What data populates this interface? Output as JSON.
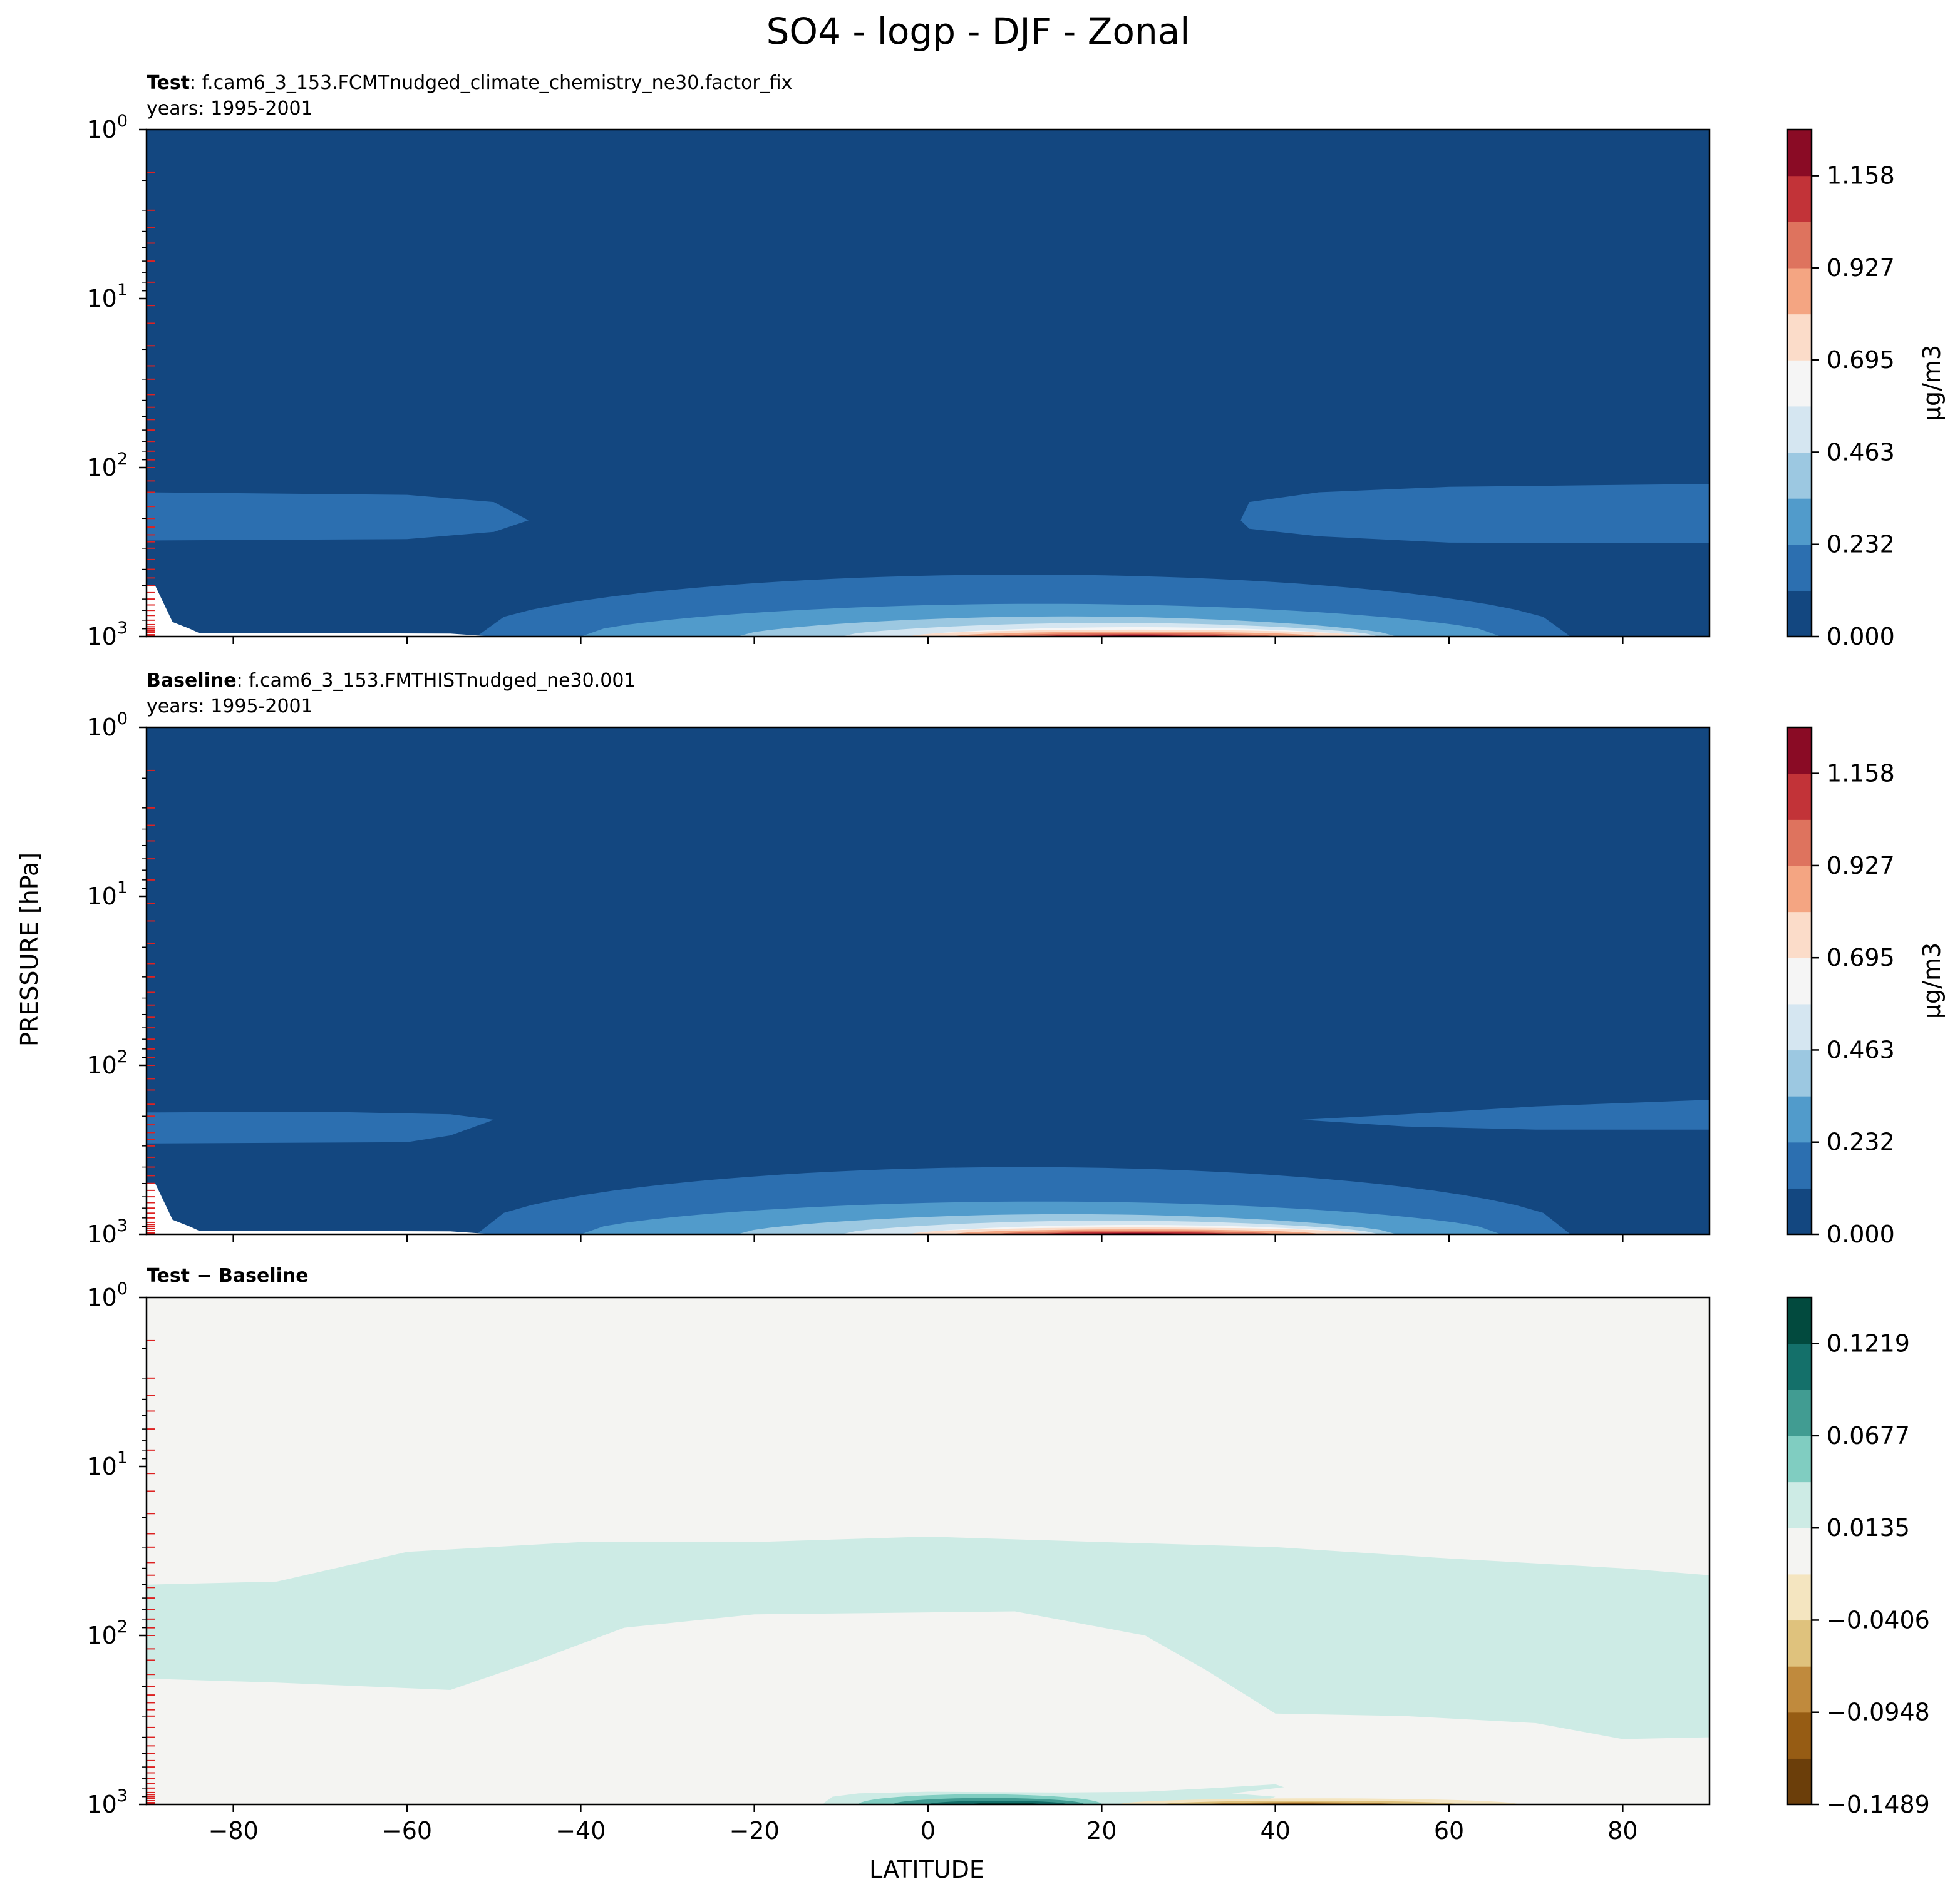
{
  "figure_title": "SO4 - logp - DJF - Zonal",
  "y_axis_label": "PRESSURE [hPa]",
  "x_axis_label": "LATITUDE",
  "x_ticks": [
    -80,
    -60,
    -40,
    -20,
    0,
    20,
    40,
    60,
    80
  ],
  "x_range": [
    -90,
    90
  ],
  "y_ticks": [
    {
      "value": 1,
      "base": "10",
      "exp": "0"
    },
    {
      "value": 10,
      "base": "10",
      "exp": "1"
    },
    {
      "value": 100,
      "base": "10",
      "exp": "2"
    },
    {
      "value": 1000,
      "base": "10",
      "exp": "3"
    }
  ],
  "y_range": [
    1,
    1000
  ],
  "colors": {
    "so4_levels": [
      "#134780",
      "#2c6fb0",
      "#519bcb",
      "#9cc8e1",
      "#d5e6f1",
      "#f5f5f5",
      "#fbdcc9",
      "#f4a582",
      "#de735e",
      "#c23338",
      "#8a0b25"
    ],
    "diff_levels": [
      "#6b3e0a",
      "#965c14",
      "#c08a3d",
      "#dfc27d",
      "#f4e5c0",
      "#f4f4f2",
      "#cdebe5",
      "#80cdc1",
      "#419c92",
      "#14706a",
      "#024a3e"
    ],
    "model_level_tick": "#dd2222",
    "missing": "#ffffff"
  },
  "panels": [
    {
      "id": "test",
      "label_bold": "Test",
      "label_text": ": f.cam6_3_153.FCMTnudged_climate_chemistry_ne30.factor_fix",
      "years": "years: 1995-2001",
      "colorbar": {
        "ticks": [
          "1.158",
          "0.927",
          "0.695",
          "0.463",
          "0.232",
          "0.000"
        ],
        "unit": "μg/m3"
      }
    },
    {
      "id": "baseline",
      "label_bold": "Baseline",
      "label_text": ": f.cam6_3_153.FMTHISTnudged_ne30.001",
      "years": "years: 1995-2001",
      "colorbar": {
        "ticks": [
          "1.158",
          "0.927",
          "0.695",
          "0.463",
          "0.232",
          "0.000"
        ],
        "unit": "μg/m3"
      }
    },
    {
      "id": "diff",
      "label_bold": "Test − Baseline",
      "label_text": "",
      "years": "",
      "colorbar": {
        "ticks": [
          "0.1219",
          "0.0677",
          "0.0135",
          "−0.0406",
          "−0.0948",
          "−0.1489"
        ],
        "unit": ""
      }
    }
  ],
  "chart_data": [
    {
      "type": "heatmap",
      "title": "Test: f.cam6_3_153.FCMTnudged_climate_chemistry_ne30.factor_fix (years: 1995-2001)",
      "xlabel": "LATITUDE",
      "ylabel": "PRESSURE [hPa]",
      "xlim": [
        -90,
        90
      ],
      "ylim": [
        1000,
        1
      ],
      "yscale": "log",
      "colorbar": {
        "min": 0.0,
        "max": 1.274,
        "ticks": [
          0.0,
          0.232,
          0.463,
          0.695,
          0.927,
          1.158
        ],
        "unit": "μg/m3"
      },
      "features": [
        {
          "desc": "background",
          "level": 0
        },
        {
          "desc": "SH upper-troposphere band",
          "level": 1,
          "lat": [
            -90,
            -46
          ],
          "p": [
            140,
            270
          ]
        },
        {
          "desc": "NH upper-troposphere band",
          "level": 1,
          "lat": [
            36,
            90
          ],
          "p": [
            125,
            280
          ]
        },
        {
          "desc": "tropical lower-troposphere dome",
          "level": 1,
          "lat": [
            -52,
            74
          ],
          "p": [
            430,
            1000
          ]
        },
        {
          "desc": "surface maximum",
          "level": 10,
          "lat": 24,
          "p": 985,
          "value": 1.2
        }
      ]
    },
    {
      "type": "heatmap",
      "title": "Baseline: f.cam6_3_153.FMTHISTnudged_ne30.001 (years: 1995-2001)",
      "xlabel": "LATITUDE",
      "ylabel": "PRESSURE [hPa]",
      "xlim": [
        -90,
        90
      ],
      "ylim": [
        1000,
        1
      ],
      "yscale": "log",
      "colorbar": {
        "min": 0.0,
        "max": 1.274,
        "ticks": [
          0.0,
          0.232,
          0.463,
          0.695,
          0.927,
          1.158
        ],
        "unit": "μg/m3"
      },
      "features": [
        {
          "desc": "background",
          "level": 0
        },
        {
          "desc": "SH upper-troposphere band",
          "level": 1,
          "lat": [
            -90,
            -50
          ],
          "p": [
            190,
            290
          ]
        },
        {
          "desc": "NH upper-troposphere band",
          "level": 1,
          "lat": [
            43,
            90
          ],
          "p": [
            160,
            240
          ]
        },
        {
          "desc": "tropical lower-troposphere dome",
          "level": 1,
          "lat": [
            -55,
            73
          ],
          "p": [
            400,
            1000
          ]
        },
        {
          "desc": "surface maximum",
          "level": 10,
          "lat": 22,
          "p": 985,
          "value": 1.2
        }
      ]
    },
    {
      "type": "heatmap",
      "title": "Test − Baseline",
      "xlabel": "LATITUDE",
      "ylabel": "PRESSURE [hPa]",
      "xlim": [
        -90,
        90
      ],
      "ylim": [
        1000,
        1
      ],
      "yscale": "log",
      "colorbar": {
        "min": -0.1489,
        "max": 0.149,
        "ticks": [
          -0.1489,
          -0.0948,
          -0.0406,
          0.0135,
          0.0677,
          0.1219
        ]
      },
      "features": [
        {
          "desc": "background near zero",
          "level": 5
        },
        {
          "desc": "weak positive band",
          "level": 6,
          "lat": [
            -90,
            90
          ],
          "p": [
            25,
            400
          ]
        },
        {
          "desc": "positive surface maximum",
          "level": 10,
          "lat": 8,
          "p": 990,
          "value": 0.14
        },
        {
          "desc": "negative surface minimum",
          "level": 0,
          "lat": 42,
          "p": 990,
          "value": -0.14
        }
      ]
    }
  ]
}
